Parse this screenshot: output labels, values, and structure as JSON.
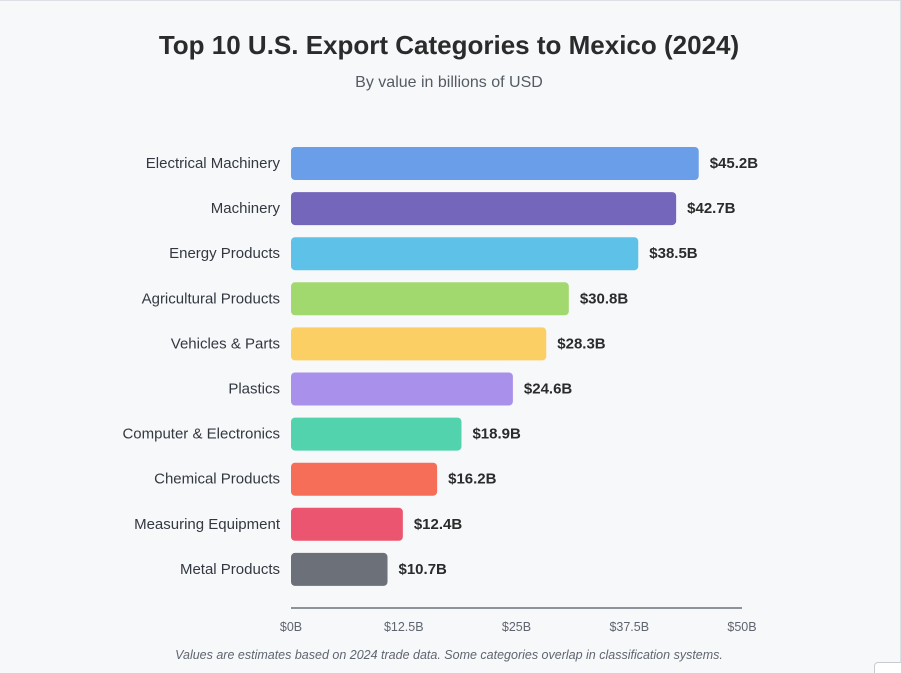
{
  "header": {
    "title": "Top 10 U.S. Export Categories to Mexico (2024)",
    "subtitle": "By value in billions of USD"
  },
  "footnote": "Values are estimates based on 2024 trade data. Some categories overlap in classification systems.",
  "chart_data": {
    "type": "bar",
    "orientation": "horizontal",
    "title": "Top 10 U.S. Export Categories to Mexico (2024)",
    "subtitle": "By value in billions of USD",
    "categories": [
      "Electrical Machinery",
      "Machinery",
      "Energy Products",
      "Agricultural Products",
      "Vehicles & Parts",
      "Plastics",
      "Computer & Electronics",
      "Chemical Products",
      "Measuring Equipment",
      "Metal Products"
    ],
    "values": [
      45.2,
      42.7,
      38.5,
      30.8,
      28.3,
      24.6,
      18.9,
      16.2,
      12.4,
      10.7
    ],
    "value_labels": [
      "$45.2B",
      "$42.7B",
      "$38.5B",
      "$30.8B",
      "$28.3B",
      "$24.6B",
      "$18.9B",
      "$16.2B",
      "$12.4B",
      "$10.7B"
    ],
    "colors": [
      "#6a9ee9",
      "#7466bb",
      "#5ec1e8",
      "#a2d96f",
      "#fbcf63",
      "#a990eb",
      "#52d3ae",
      "#f66e57",
      "#eb5570",
      "#6b7079"
    ],
    "xlim": [
      0,
      50
    ],
    "x_ticks": [
      0,
      12.5,
      25,
      37.5,
      50
    ],
    "x_tick_labels": [
      "$0B",
      "$12.5B",
      "$25B",
      "$37.5B",
      "$50B"
    ],
    "grid": false,
    "legend": "none"
  }
}
